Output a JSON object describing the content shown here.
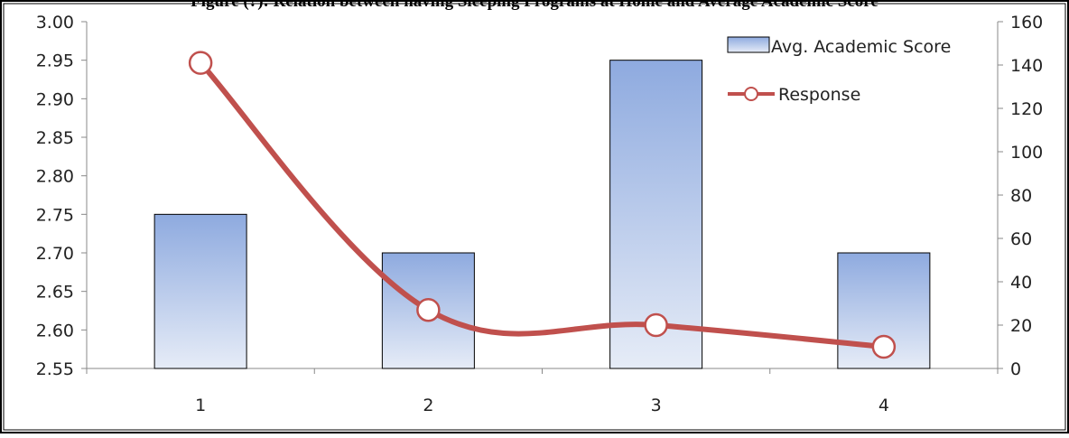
{
  "chart_data": {
    "type": "bar",
    "title": "Figure (?): Relation between having Sleeping Programs at Home and Average Academic Score",
    "categories": [
      "1",
      "2",
      "3",
      "4"
    ],
    "series": [
      {
        "name": "Avg. Academic Score",
        "type": "bar",
        "axis": "left",
        "values": [
          2.75,
          2.7,
          2.95,
          2.7
        ],
        "color": "#9bb7e3"
      },
      {
        "name": "Response",
        "type": "line",
        "axis": "right",
        "values": [
          141,
          27,
          20,
          10
        ],
        "color": "#c0504d",
        "marker": "open-circle",
        "smooth": true
      }
    ],
    "y_left": {
      "min": 2.55,
      "max": 3.0,
      "step": 0.05,
      "tick_labels": [
        "2.55",
        "2.60",
        "2.65",
        "2.70",
        "2.75",
        "2.80",
        "2.85",
        "2.90",
        "2.95",
        "3.00"
      ]
    },
    "y_right": {
      "min": 0,
      "max": 160,
      "step": 20,
      "tick_labels": [
        "0",
        "20",
        "40",
        "60",
        "80",
        "100",
        "120",
        "140",
        "160"
      ]
    },
    "grid": false,
    "legend": "top-right"
  }
}
